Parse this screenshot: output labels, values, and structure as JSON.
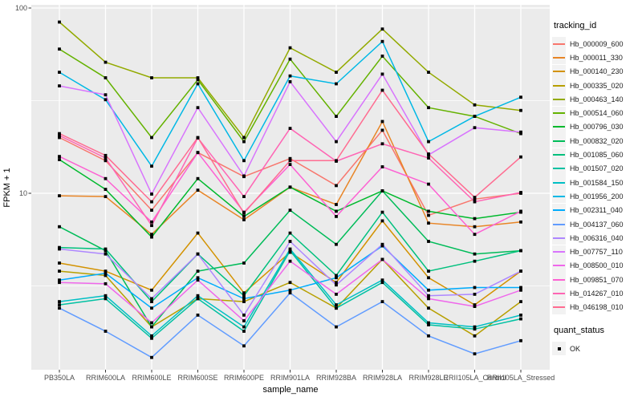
{
  "axes": {
    "y_title": "FPKM + 1",
    "x_title": "sample_name",
    "y_ticks": [
      {
        "label": "100",
        "value": 100
      },
      {
        "label": "10",
        "value": 10
      }
    ],
    "samples": [
      "PB350LA",
      "RRIM600LA",
      "RRIM600LE",
      "RRIM600SE",
      "RRIM600PE",
      "RRIM901LA",
      "RRIM928BA",
      "RRIM928LA",
      "RRIM928LE",
      "RRII105LA_Control",
      "RRII105LA_Stressed"
    ]
  },
  "legend": {
    "tracking_title": "tracking_id",
    "quant_title": "quant_status",
    "quant_items": [
      {
        "label": "OK",
        "marker": "black-square"
      }
    ]
  },
  "colors": {
    "panel_background": "#EBEBEB",
    "grid": "#FFFFFF",
    "tick_mark": "#333333",
    "tick_text": "#4D4D4D",
    "point": "#000000",
    "legend_key_background": "#F2F2F2"
  },
  "chart_data": {
    "type": "line",
    "title": "",
    "xlabel": "sample_name",
    "ylabel": "FPKM + 1",
    "y_scale": "log10",
    "ylim": [
      1.12,
      104
    ],
    "grid": "white-on-gray, minor gridlines at 3.16 and 31.6",
    "legend_position": "right",
    "point_marker": "black square (quant_status OK) at every sample",
    "categories": [
      "PB350LA",
      "RRIM600LA",
      "RRIM600LE",
      "RRIM600SE",
      "RRIM600PE",
      "RRIM901LA",
      "RRIM928BA",
      "RRIM928LA",
      "RRIM928LE",
      "RRII105LA_Control",
      "RRII105LA_Stressed"
    ],
    "series": [
      {
        "name": "Hb_000009_600",
        "color": "#F8766D",
        "values": [
          20,
          15,
          8.1,
          16.6,
          12.3,
          15.4,
          11,
          21.9,
          7.6,
          9.3,
          10
        ]
      },
      {
        "name": "Hb_000011_330",
        "color": "#E88526",
        "values": [
          9.7,
          9.6,
          6.0,
          10.4,
          7.2,
          10.8,
          8.7,
          24.4,
          6.9,
          6.6,
          7.0
        ]
      },
      {
        "name": "Hb_000140_230",
        "color": "#D39200",
        "values": [
          4.2,
          3.8,
          3.0,
          6.1,
          2.9,
          4.8,
          3.3,
          7.1,
          3.5,
          2.5,
          3.8
        ]
      },
      {
        "name": "Hb_000335_020",
        "color": "#B79F00",
        "values": [
          3.8,
          3.6,
          1.9,
          2.7,
          2.6,
          3.3,
          2.4,
          4.4,
          2.4,
          1.7,
          2.6
        ]
      },
      {
        "name": "Hb_000463_140",
        "color": "#93AA00",
        "values": [
          84,
          51,
          42,
          42,
          20,
          61,
          45,
          77,
          45,
          30,
          28
        ]
      },
      {
        "name": "Hb_000514_060",
        "color": "#64B200",
        "values": [
          60,
          42,
          20,
          41,
          19,
          53,
          26,
          55,
          29,
          26,
          21
        ]
      },
      {
        "name": "Hb_000796_030",
        "color": "#00B92D",
        "values": [
          15.2,
          10.5,
          5.8,
          12,
          7.5,
          10.8,
          8.0,
          10.3,
          8.0,
          7.3,
          7.9
        ]
      },
      {
        "name": "Hb_000832_020",
        "color": "#00BC59",
        "values": [
          6.6,
          4.9,
          1.9,
          3.8,
          4.2,
          8.1,
          5.3,
          10.3,
          5.5,
          4.7,
          4.9
        ]
      },
      {
        "name": "Hb_001085_060",
        "color": "#00C07D",
        "values": [
          5.1,
          5.0,
          2.6,
          4.7,
          2.8,
          6.1,
          3.6,
          7.9,
          3.8,
          4.3,
          4.9
        ]
      },
      {
        "name": "Hb_001507_020",
        "color": "#00C1A2",
        "values": [
          2.5,
          2.7,
          1.65,
          2.7,
          1.8,
          4.9,
          2.4,
          3.3,
          1.95,
          1.85,
          2.1
        ]
      },
      {
        "name": "Hb_001584_150",
        "color": "#00BFC4",
        "values": [
          2.6,
          2.8,
          1.7,
          2.8,
          1.9,
          5.0,
          2.5,
          3.4,
          2.0,
          1.9,
          2.2
        ]
      },
      {
        "name": "Hb_001956_200",
        "color": "#00B8E5",
        "values": [
          45,
          32,
          14,
          39,
          15,
          43,
          39,
          66,
          19,
          26,
          33
        ]
      },
      {
        "name": "Hb_002311_040",
        "color": "#00ACFC",
        "values": [
          3.4,
          3.7,
          2.4,
          3.5,
          2.7,
          3.0,
          3.5,
          5.2,
          3.0,
          3.1,
          3.1
        ]
      },
      {
        "name": "Hb_004137_060",
        "color": "#619CFF",
        "values": [
          2.4,
          1.8,
          1.3,
          2.2,
          1.5,
          2.9,
          1.9,
          2.6,
          1.7,
          1.36,
          1.6
        ]
      },
      {
        "name": "Hb_006316_040",
        "color": "#AE87FF",
        "values": [
          5.0,
          4.7,
          2.7,
          4.7,
          2.2,
          5.5,
          3.2,
          5.3,
          2.8,
          2.85,
          3.8
        ]
      },
      {
        "name": "Hb_007757_110",
        "color": "#D874FD",
        "values": [
          38,
          34,
          9.9,
          29,
          12.4,
          40,
          19,
          44,
          16.1,
          22.6,
          21.4
        ]
      },
      {
        "name": "Hb_008500_010",
        "color": "#EF67EB",
        "values": [
          3.3,
          3.25,
          2.0,
          3.4,
          2.05,
          4.3,
          2.85,
          4.4,
          2.7,
          2.45,
          3.0
        ]
      },
      {
        "name": "Hb_009851_070",
        "color": "#FD61D3",
        "values": [
          15.8,
          12,
          7.0,
          16.6,
          7.9,
          14.3,
          7.5,
          13.9,
          11.2,
          6.0,
          8.0
        ]
      },
      {
        "name": "Hb_014267_010",
        "color": "#FF65B4",
        "values": [
          20.5,
          15.5,
          6.7,
          19.9,
          9.6,
          22.4,
          14.9,
          18.5,
          15.5,
          9.0,
          10.1
        ]
      },
      {
        "name": "Hb_046198_010",
        "color": "#FF6C91",
        "values": [
          21,
          16,
          9.0,
          20,
          7.8,
          15,
          15,
          36,
          16.3,
          9.5,
          15.7
        ]
      }
    ]
  }
}
